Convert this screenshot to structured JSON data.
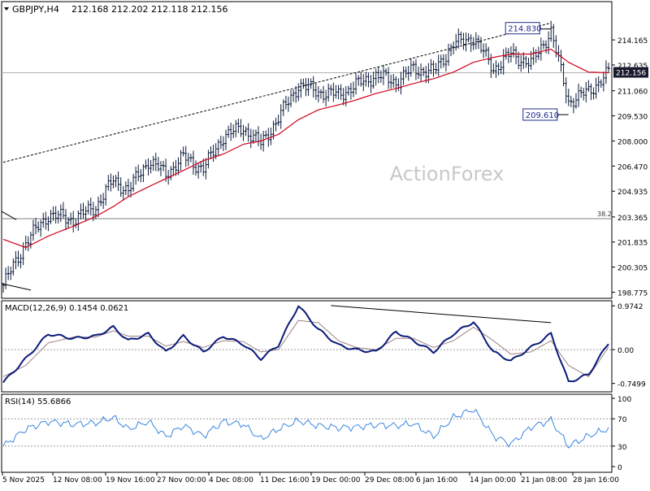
{
  "header": {
    "symbol_label": "GBPJPY,H4",
    "ohlc": "212.168 212.202 212.118 212.156"
  },
  "watermark": "ActionForex",
  "colors": {
    "candle": "#0b1a3a",
    "ema": "#d0021b",
    "macd_line": "#0a1a7a",
    "macd_signal": "#a08080",
    "rsi": "#3a86e0",
    "trendline": "#000000",
    "grid_level": "#7f7f7f",
    "price_box_bg": "#1a1a2e"
  },
  "annotations": {
    "high_label": "214.830",
    "low_label": "209.610",
    "fib_label": "38.2",
    "current_price": "212.156"
  },
  "macd": {
    "title": "MACD(12,26,9) 0.1454 0.0621",
    "axis_labels": [
      "0.9742",
      "0.00",
      "-0.7499"
    ]
  },
  "rsi": {
    "title": "RSI(14) 55.6866",
    "axis_labels": [
      "100",
      "70",
      "30",
      "0"
    ]
  },
  "chart_data": [
    {
      "type": "candlestick",
      "title": "GBPJPY,H4",
      "y_ticks": [
        "214.165",
        "212.635",
        "211.060",
        "209.530",
        "208.000",
        "206.470",
        "204.935",
        "203.365",
        "201.835",
        "200.305",
        "198.775"
      ],
      "ylim": [
        198.4,
        216.5
      ],
      "x_ticks": [
        "5 Nov 2025",
        "12 Nov 08:00",
        "19 Nov 16:00",
        "27 Nov 00:00",
        "4 Dec 08:00",
        "11 Dec 16:00",
        "19 Dec 00:00",
        "29 Dec 08:00",
        "6 Jan 16:00",
        "14 Jan 00:00",
        "21 Jan 08:00",
        "28 Jan 16:00"
      ],
      "series": [
        {
          "name": "GBPJPY",
          "x": [
            0,
            9,
            18,
            28,
            37,
            44,
            50,
            58,
            65,
            72,
            80,
            88,
            96,
            103,
            110,
            118,
            126,
            134,
            141,
            149,
            157,
            164,
            172,
            180,
            188,
            196,
            203,
            211,
            219,
            226,
            234,
            242
          ],
          "values": [
            199.2,
            201.8,
            203.5,
            203.2,
            204.0,
            205.6,
            205.0,
            206.8,
            206.0,
            207.0,
            206.3,
            208.3,
            208.8,
            207.8,
            209.4,
            211.4,
            211.0,
            210.8,
            211.4,
            212.0,
            211.6,
            212.4,
            212.2,
            213.9,
            214.3,
            212.4,
            213.3,
            212.7,
            214.7,
            210.4,
            211.0,
            212.16
          ]
        },
        {
          "name": "EMA",
          "x": [
            0,
            9,
            18,
            28,
            37,
            44,
            50,
            58,
            65,
            72,
            80,
            88,
            96,
            103,
            110,
            118,
            126,
            134,
            141,
            149,
            157,
            164,
            172,
            180,
            188,
            196,
            203,
            211,
            219,
            226,
            234,
            242
          ],
          "values": [
            202.0,
            201.5,
            202.2,
            202.8,
            203.4,
            204.0,
            204.6,
            205.2,
            205.7,
            206.2,
            206.8,
            207.2,
            207.8,
            208.0,
            208.4,
            209.3,
            209.9,
            210.2,
            210.5,
            210.9,
            211.2,
            211.5,
            211.8,
            212.2,
            212.8,
            213.1,
            213.3,
            213.3,
            213.6,
            212.8,
            212.2,
            212.16
          ]
        }
      ],
      "trendline": {
        "from": [
          0,
          206.7
        ],
        "to": [
          219,
          215.2
        ]
      },
      "level": {
        "label": "38.2",
        "value": 203.26
      },
      "high": 214.83,
      "low": 209.61
    },
    {
      "type": "line",
      "title": "MACD(12,26,9) 0.1454 0.0621",
      "ylim": [
        -0.9,
        1.05
      ],
      "y_ticks": [
        "0.9742",
        "0.00",
        "-0.7499"
      ],
      "x": [
        0,
        9,
        18,
        28,
        37,
        44,
        50,
        58,
        65,
        72,
        80,
        88,
        96,
        103,
        110,
        118,
        126,
        134,
        141,
        149,
        157,
        164,
        172,
        180,
        188,
        196,
        203,
        211,
        219,
        226,
        234,
        242
      ],
      "series": [
        {
          "name": "MACD",
          "values": [
            -0.73,
            -0.2,
            0.35,
            0.25,
            0.3,
            0.5,
            0.2,
            0.35,
            -0.05,
            0.3,
            -0.05,
            0.3,
            0.12,
            -0.2,
            0.1,
            0.98,
            0.45,
            0.1,
            0.0,
            -0.05,
            0.4,
            0.2,
            -0.05,
            0.35,
            0.62,
            -0.05,
            -0.25,
            0.05,
            0.35,
            -0.72,
            -0.55,
            0.15
          ]
        },
        {
          "name": "Signal",
          "values": [
            -0.6,
            -0.35,
            0.15,
            0.28,
            0.28,
            0.42,
            0.3,
            0.3,
            0.08,
            0.18,
            0.05,
            0.2,
            0.18,
            -0.05,
            0.0,
            0.65,
            0.6,
            0.2,
            0.05,
            0.0,
            0.25,
            0.25,
            0.05,
            0.2,
            0.5,
            0.2,
            -0.1,
            -0.05,
            0.2,
            -0.35,
            -0.6,
            0.06
          ]
        }
      ],
      "trendline": {
        "from": [
          131,
          0.98
        ],
        "to": [
          219,
          0.6
        ]
      }
    },
    {
      "type": "line",
      "title": "RSI(14) 55.6866",
      "ylim": [
        0,
        100
      ],
      "y_ticks": [
        "100",
        "70",
        "30",
        "0"
      ],
      "levels": [
        70,
        30
      ],
      "x": [
        0,
        9,
        18,
        28,
        37,
        44,
        50,
        58,
        65,
        72,
        80,
        88,
        96,
        103,
        110,
        118,
        126,
        134,
        141,
        149,
        157,
        164,
        172,
        180,
        188,
        196,
        203,
        211,
        219,
        226,
        234,
        242
      ],
      "series": [
        {
          "name": "RSI",
          "values": [
            30,
            55,
            66,
            62,
            64,
            72,
            55,
            66,
            44,
            60,
            45,
            66,
            62,
            40,
            55,
            67,
            60,
            57,
            58,
            61,
            60,
            63,
            44,
            72,
            84,
            45,
            33,
            58,
            68,
            30,
            45,
            55.69
          ]
        }
      ]
    }
  ]
}
